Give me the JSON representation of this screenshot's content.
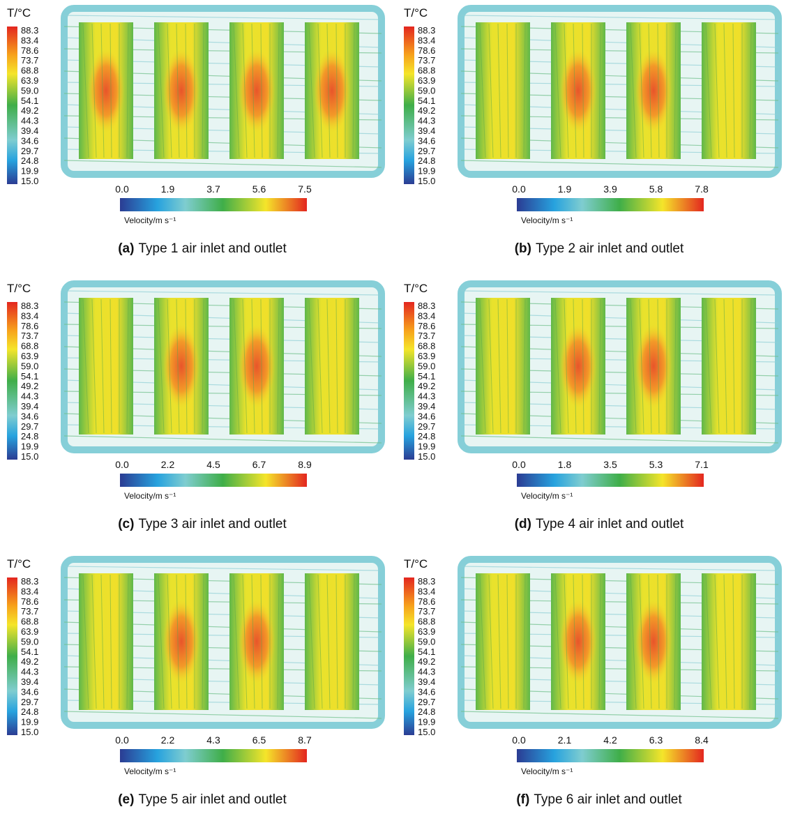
{
  "panels": [
    {
      "temperature_label": "T/°C",
      "temperature_scale": [
        "88.3",
        "83.4",
        "78.6",
        "73.7",
        "68.8",
        "63.9",
        "59.0",
        "54.1",
        "49.2",
        "44.3",
        "39.4",
        "34.6",
        "29.7",
        "24.8",
        "19.9",
        "15.0"
      ],
      "velocity_ticks": [
        "0.0",
        "1.9",
        "3.7",
        "5.6",
        "7.5"
      ],
      "velocity_label": "Velocity/m s⁻¹",
      "caption_label": "(a)",
      "caption_text": "Type 1 air inlet and outlet"
    },
    {
      "temperature_label": "T/°C",
      "temperature_scale": [
        "88.3",
        "83.4",
        "78.6",
        "73.7",
        "68.8",
        "63.9",
        "59.0",
        "54.1",
        "49.2",
        "44.3",
        "39.4",
        "34.6",
        "29.7",
        "24.8",
        "19.9",
        "15.0"
      ],
      "velocity_ticks": [
        "0.0",
        "1.9",
        "3.9",
        "5.8",
        "7.8"
      ],
      "velocity_label": "Velocity/m s⁻¹",
      "caption_label": "(b)",
      "caption_text": "Type 2 air inlet and outlet"
    },
    {
      "temperature_label": "T/°C",
      "temperature_scale": [
        "88.3",
        "83.4",
        "78.6",
        "73.7",
        "68.8",
        "63.9",
        "59.0",
        "54.1",
        "49.2",
        "44.3",
        "39.4",
        "34.6",
        "29.7",
        "24.8",
        "19.9",
        "15.0"
      ],
      "velocity_ticks": [
        "0.0",
        "2.2",
        "4.5",
        "6.7",
        "8.9"
      ],
      "velocity_label": "Velocity/m s⁻¹",
      "caption_label": "(c)",
      "caption_text": "Type 3 air inlet and outlet"
    },
    {
      "temperature_label": "T/°C",
      "temperature_scale": [
        "88.3",
        "83.4",
        "78.6",
        "73.7",
        "68.8",
        "63.9",
        "59.0",
        "54.1",
        "49.2",
        "44.3",
        "39.4",
        "34.6",
        "29.7",
        "24.8",
        "19.9",
        "15.0"
      ],
      "velocity_ticks": [
        "0.0",
        "1.8",
        "3.5",
        "5.3",
        "7.1"
      ],
      "velocity_label": "Velocity/m s⁻¹",
      "caption_label": "(d)",
      "caption_text": "Type 4 air inlet and outlet"
    },
    {
      "temperature_label": "T/°C",
      "temperature_scale": [
        "88.3",
        "83.4",
        "78.6",
        "73.7",
        "68.8",
        "63.9",
        "59.0",
        "54.1",
        "49.2",
        "44.3",
        "39.4",
        "34.6",
        "29.7",
        "24.8",
        "19.9",
        "15.0"
      ],
      "velocity_ticks": [
        "0.0",
        "2.2",
        "4.3",
        "6.5",
        "8.7"
      ],
      "velocity_label": "Velocity/m s⁻¹",
      "caption_label": "(e)",
      "caption_text": "Type 5 air inlet and outlet"
    },
    {
      "temperature_label": "T/°C",
      "temperature_scale": [
        "88.3",
        "83.4",
        "78.6",
        "73.7",
        "68.8",
        "63.9",
        "59.0",
        "54.1",
        "49.2",
        "44.3",
        "39.4",
        "34.6",
        "29.7",
        "24.8",
        "19.9",
        "15.0"
      ],
      "velocity_ticks": [
        "0.0",
        "2.1",
        "4.2",
        "6.3",
        "8.4"
      ],
      "velocity_label": "Velocity/m s⁻¹",
      "caption_label": "(f)",
      "caption_text": "Type 6 air inlet and outlet"
    }
  ]
}
